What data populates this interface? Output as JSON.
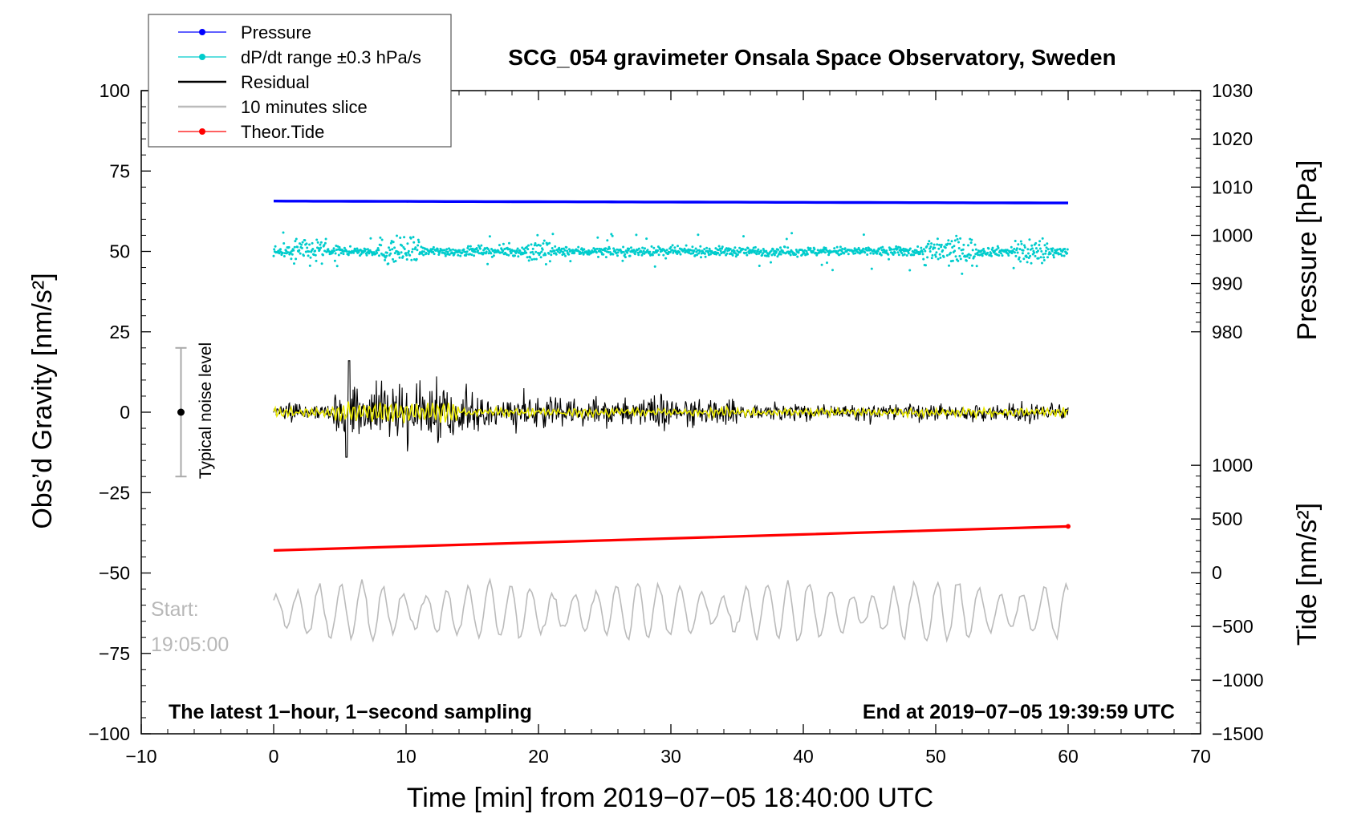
{
  "chart_data": {
    "type": "line",
    "title": "SCG_054 gravimeter Onsala Space Observatory, Sweden",
    "xlabel": "Time [min] from 2019−07−05 18:40:00 UTC",
    "ylabel_left": "Obs’d Gravity [nm/s²]",
    "ylabel_right_upper": "Pressure [hPa]",
    "ylabel_right_lower": "Tide [nm/s²]",
    "xlim": [
      -10,
      70
    ],
    "ylim": [
      -100,
      100
    ],
    "pressure_lim": [
      980,
      1030
    ],
    "tide_lim": [
      -1500,
      1000
    ],
    "xticks": [
      {
        "v": -10,
        "t": "−10"
      },
      {
        "v": 0,
        "t": "0"
      },
      {
        "v": 10,
        "t": "10"
      },
      {
        "v": 20,
        "t": "20"
      },
      {
        "v": 30,
        "t": "30"
      },
      {
        "v": 40,
        "t": "40"
      },
      {
        "v": 50,
        "t": "50"
      },
      {
        "v": 60,
        "t": "60"
      },
      {
        "v": 70,
        "t": "70"
      }
    ],
    "yticks": [
      {
        "v": 100,
        "t": "100"
      },
      {
        "v": 75,
        "t": "75"
      },
      {
        "v": 50,
        "t": "50"
      },
      {
        "v": 25,
        "t": "25"
      },
      {
        "v": 0,
        "t": "0"
      },
      {
        "v": -25,
        "t": "−25"
      },
      {
        "v": -50,
        "t": "−50"
      },
      {
        "v": -75,
        "t": "−75"
      },
      {
        "v": -100,
        "t": "−100"
      }
    ],
    "pressure_ticks": [
      {
        "v": 1030,
        "t": "1030"
      },
      {
        "v": 1020,
        "t": "1020"
      },
      {
        "v": 1010,
        "t": "1010"
      },
      {
        "v": 1000,
        "t": "1000"
      },
      {
        "v": 990,
        "t": "990"
      },
      {
        "v": 980,
        "t": "980"
      }
    ],
    "tide_ticks": [
      {
        "v": 1000,
        "t": "1000"
      },
      {
        "v": 500,
        "t": "500"
      },
      {
        "v": 0,
        "t": "0"
      },
      {
        "v": -500,
        "t": "−500"
      },
      {
        "v": -1000,
        "t": "−1000"
      },
      {
        "v": -1500,
        "t": "−1500"
      }
    ],
    "legend": [
      {
        "label": "Pressure",
        "color": "#0000ff",
        "marker": "dot"
      },
      {
        "label": "dP/dt range ±0.3 hPa/s",
        "color": "#00cccc",
        "marker": "dot"
      },
      {
        "label": "Residual",
        "color": "#000000",
        "marker": "line"
      },
      {
        "label": "10 minutes slice",
        "color": "#bbbbbb",
        "marker": "line"
      },
      {
        "label": "Theor.Tide",
        "color": "#ff0000",
        "marker": "dot"
      }
    ],
    "legend_position": "top-left",
    "series": [
      {
        "name": "Pressure",
        "axis": "pressure",
        "color": "#0000ff",
        "x": [
          0,
          60
        ],
        "values": [
          1007.1,
          1006.7
        ]
      },
      {
        "name": "dP/dt range ±0.3 hPa/s",
        "axis": "gravity",
        "color": "#00cccc",
        "x": [
          0,
          60
        ],
        "center": 50,
        "spread": 6
      },
      {
        "name": "Residual",
        "axis": "gravity",
        "color": "#000000",
        "x": [
          0,
          60
        ],
        "center": 0,
        "peak": 16,
        "peak_min": -14
      },
      {
        "name": "Residual (filtered)",
        "axis": "gravity",
        "color": "#e8e800",
        "x": [
          0,
          60
        ],
        "center": 0
      },
      {
        "name": "Theor.Tide",
        "axis": "gravity",
        "color": "#ff0000",
        "x": [
          0,
          60
        ],
        "values": [
          -43,
          -35.5
        ]
      },
      {
        "name": "10 minutes slice",
        "axis": "gravity",
        "color": "#bbbbbb",
        "x": [
          0,
          60
        ],
        "center": -62,
        "range": [
          -71,
          -52
        ]
      }
    ],
    "noise_bar": {
      "label": "Typical noise level",
      "x": -7,
      "center": 0,
      "half_range": 20
    },
    "slice_start_label": "Start:",
    "slice_start_time": "19:05:00",
    "note_left": "The latest 1−hour, 1−second sampling",
    "note_right": "End at 2019−07−05 19:39:59 UTC",
    "colors": {
      "pressure": "#0000ff",
      "dpdt": "#00cccc",
      "residual": "#000000",
      "filtered": "#e8e800",
      "tide": "#ff0000",
      "slice": "#bbbbbb"
    }
  }
}
